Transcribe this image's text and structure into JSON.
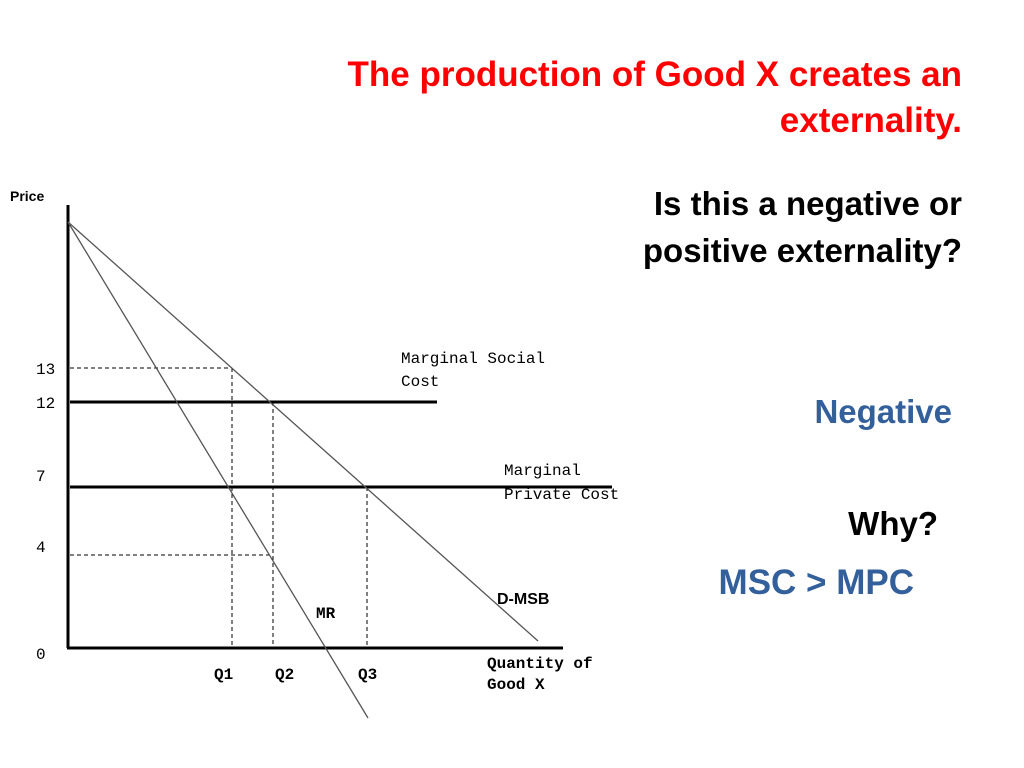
{
  "slide": {
    "title": "The production of Good X creates an externality.",
    "question": "Is this a negative or positive externality?",
    "answer": "Negative",
    "why": "Why?",
    "reason": "MSC > MPC"
  },
  "diagram": {
    "y_axis_label": "Price",
    "x_axis_label_line1": "Quantity of",
    "x_axis_label_line2": "Good X",
    "price_ticks": [
      "13",
      "12",
      "7",
      "4",
      "0"
    ],
    "quantity_ticks": [
      "Q1",
      "Q2",
      "Q3"
    ],
    "curves": {
      "msc_line1": "Marginal Social",
      "msc_line2": "Cost",
      "mpc_line1": "Marginal",
      "mpc_line2": "Private Cost",
      "demand": "D-MSB",
      "marginal_revenue": "MR"
    }
  }
}
